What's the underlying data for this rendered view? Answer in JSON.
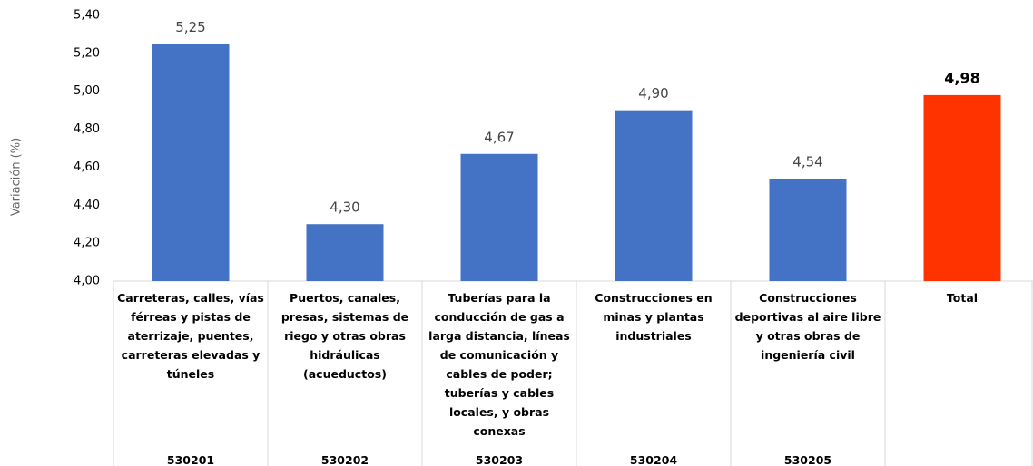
{
  "chart_data": {
    "type": "bar",
    "y_axis_label": "Variación (%)",
    "categories": [
      "Carreteras, calles, vías férreas y pistas de aterrizaje, puentes, carreteras elevadas y túneles",
      "Puertos, canales, presas, sistemas de riego y otras obras hidráulicas (acueductos)",
      "Tuberías para la conducción de gas a larga distancia, líneas de comunicación y cables de poder; tuberías y cables locales, y obras conexas",
      "Construcciones  en minas y plantas industriales",
      "Construcciones deportivas al aire libre y otras obras de ingeniería civil",
      "Total"
    ],
    "codes": [
      "530201",
      "530202",
      "530203",
      "530204",
      "530205",
      null
    ],
    "values": [
      5.25,
      4.3,
      4.67,
      4.9,
      4.54,
      4.98
    ],
    "value_labels": [
      "5,25",
      "4,30",
      "4,67",
      "4,90",
      "4,54",
      "4,98"
    ],
    "colors": [
      "#4472c4",
      "#4472c4",
      "#4472c4",
      "#4472c4",
      "#4472c4",
      "#ff3300"
    ],
    "ylim": [
      4.0,
      5.4
    ],
    "yticks": [
      {
        "value": 4.0,
        "label": "4,00"
      },
      {
        "value": 4.2,
        "label": "4,20"
      },
      {
        "value": 4.4,
        "label": "4,40"
      },
      {
        "value": 4.6,
        "label": "4,60"
      },
      {
        "value": 4.8,
        "label": "4,80"
      },
      {
        "value": 5.0,
        "label": "5,00"
      },
      {
        "value": 5.2,
        "label": "5,20"
      },
      {
        "value": 5.4,
        "label": "5,40"
      }
    ],
    "grid": false
  }
}
